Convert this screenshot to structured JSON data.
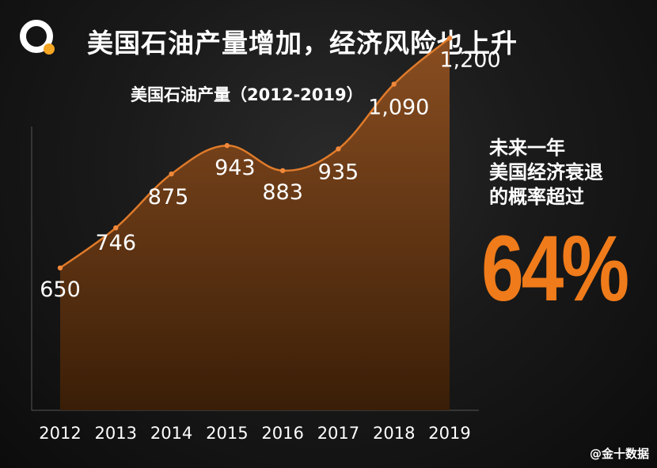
{
  "header": {
    "title": "美国石油产量增加，经济风险也上升"
  },
  "side_note": {
    "lines": [
      "未来一年",
      "美国经济衰退",
      "的概率超过"
    ],
    "percent": "64%"
  },
  "credit": "@金十数据",
  "colors": {
    "accent": "#f07b1a",
    "area_top": "#8a4e21",
    "area_bottom": "#3d2008",
    "line": "#e07b2a"
  },
  "chart_data": {
    "type": "area",
    "title": "美国石油产量（2012-2019）",
    "categories": [
      "2012",
      "2013",
      "2014",
      "2015",
      "2016",
      "2017",
      "2018",
      "2019"
    ],
    "values": [
      650,
      746,
      875,
      943,
      883,
      935,
      1090,
      1200
    ],
    "value_labels": [
      "650",
      "746",
      "875",
      "943",
      "883",
      "935",
      "1,090",
      "1,200"
    ],
    "xlabel": "",
    "ylabel": "",
    "grid": false,
    "legend": "none"
  }
}
